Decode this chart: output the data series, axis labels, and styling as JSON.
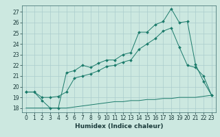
{
  "title": "",
  "xlabel": "Humidex (Indice chaleur)",
  "bg_color": "#cce8e0",
  "grid_color": "#aacccc",
  "line_color": "#1a7a6a",
  "xlim": [
    -0.5,
    23.5
  ],
  "ylim": [
    17.6,
    27.6
  ],
  "yticks": [
    18,
    19,
    20,
    21,
    22,
    23,
    24,
    25,
    26,
    27
  ],
  "xticks": [
    0,
    1,
    2,
    3,
    4,
    5,
    6,
    7,
    8,
    9,
    10,
    11,
    12,
    13,
    14,
    15,
    16,
    17,
    18,
    19,
    20,
    21,
    22,
    23
  ],
  "line1_x": [
    0,
    1,
    2,
    3,
    4,
    5,
    6,
    7,
    8,
    9,
    10,
    11,
    12,
    13,
    14,
    15,
    16,
    17,
    18,
    19,
    20,
    21,
    22,
    23
  ],
  "line1_y": [
    19.5,
    19.5,
    18.7,
    18.0,
    18.0,
    21.3,
    21.5,
    22.0,
    21.8,
    22.2,
    22.5,
    22.5,
    23.0,
    23.2,
    25.1,
    25.1,
    25.8,
    26.1,
    27.3,
    26.0,
    26.1,
    22.1,
    20.5,
    19.2
  ],
  "line2_x": [
    0,
    1,
    2,
    3,
    4,
    5,
    6,
    7,
    8,
    9,
    10,
    11,
    12,
    13,
    14,
    15,
    16,
    17,
    18,
    19,
    20,
    21,
    22,
    23
  ],
  "line2_y": [
    19.5,
    19.5,
    19.0,
    19.0,
    19.1,
    19.5,
    20.8,
    21.0,
    21.2,
    21.5,
    21.9,
    22.0,
    22.3,
    22.5,
    23.5,
    24.0,
    24.5,
    25.2,
    25.5,
    23.7,
    22.0,
    21.8,
    21.0,
    19.2
  ],
  "line3_x": [
    0,
    1,
    2,
    3,
    4,
    5,
    6,
    7,
    8,
    9,
    10,
    11,
    12,
    13,
    14,
    15,
    16,
    17,
    18,
    19,
    20,
    21,
    22,
    23
  ],
  "line3_y": [
    18.0,
    18.0,
    18.0,
    18.0,
    18.0,
    18.0,
    18.1,
    18.2,
    18.3,
    18.4,
    18.5,
    18.6,
    18.6,
    18.7,
    18.7,
    18.8,
    18.8,
    18.9,
    18.9,
    19.0,
    19.0,
    19.0,
    19.1,
    19.2
  ],
  "xlabel_fontsize": 6.5,
  "tick_fontsize": 5.5
}
